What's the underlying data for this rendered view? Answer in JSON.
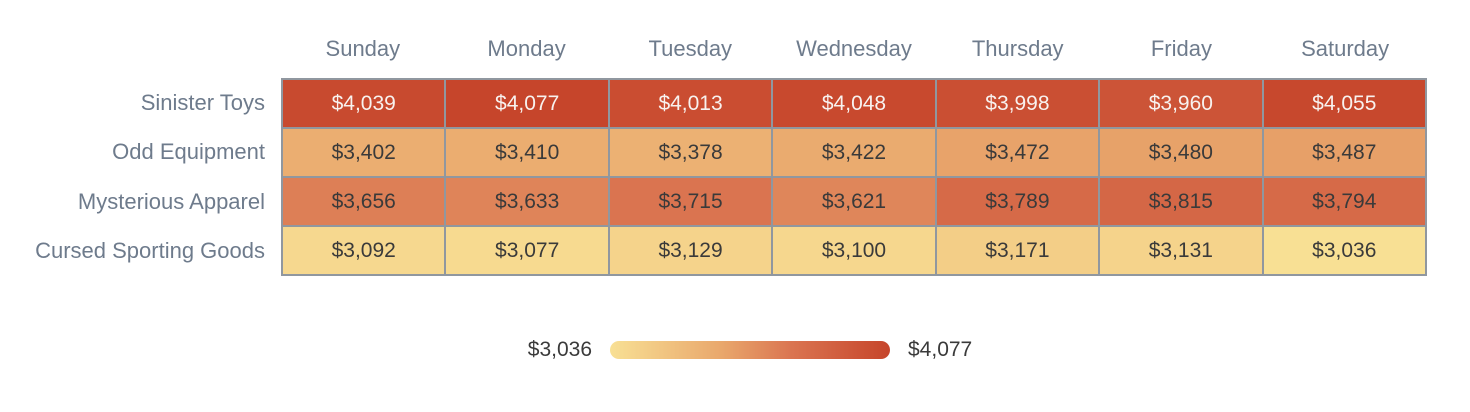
{
  "chart_data": {
    "type": "heatmap",
    "columns": [
      "Sunday",
      "Monday",
      "Tuesday",
      "Wednesday",
      "Thursday",
      "Friday",
      "Saturday"
    ],
    "rows": [
      "Sinister Toys",
      "Odd Equipment",
      "Mysterious Apparel",
      "Cursed Sporting Goods"
    ],
    "series": [
      {
        "name": "Sinister Toys",
        "values": [
          4039,
          4077,
          4013,
          4048,
          3998,
          3960,
          4055
        ]
      },
      {
        "name": "Odd Equipment",
        "values": [
          3402,
          3410,
          3378,
          3422,
          3472,
          3480,
          3487
        ]
      },
      {
        "name": "Mysterious Apparel",
        "values": [
          3656,
          3633,
          3715,
          3621,
          3789,
          3815,
          3794
        ]
      },
      {
        "name": "Cursed Sporting Goods",
        "values": [
          3092,
          3077,
          3129,
          3100,
          3171,
          3131,
          3036
        ]
      }
    ],
    "value_prefix": "$",
    "legend_position": "bottom",
    "scale": {
      "min": 3036,
      "max": 4077,
      "min_label": "$3,036",
      "max_label": "$4,077",
      "stops": [
        {
          "t": 0.0,
          "color": "#f8e094"
        },
        {
          "t": 0.4,
          "color": "#e9a76c"
        },
        {
          "t": 0.65,
          "color": "#da7450"
        },
        {
          "t": 1.0,
          "color": "#c6452b"
        }
      ],
      "light_text_threshold": 0.82
    }
  },
  "colors": {
    "background": "#ffffff",
    "axis_label": "#6e7b8c",
    "grid_line": "#90979f",
    "cell_text_dark": "#3a3a3a",
    "cell_text_light": "#f8f2ef",
    "legend_text": "#3a3a3a"
  }
}
